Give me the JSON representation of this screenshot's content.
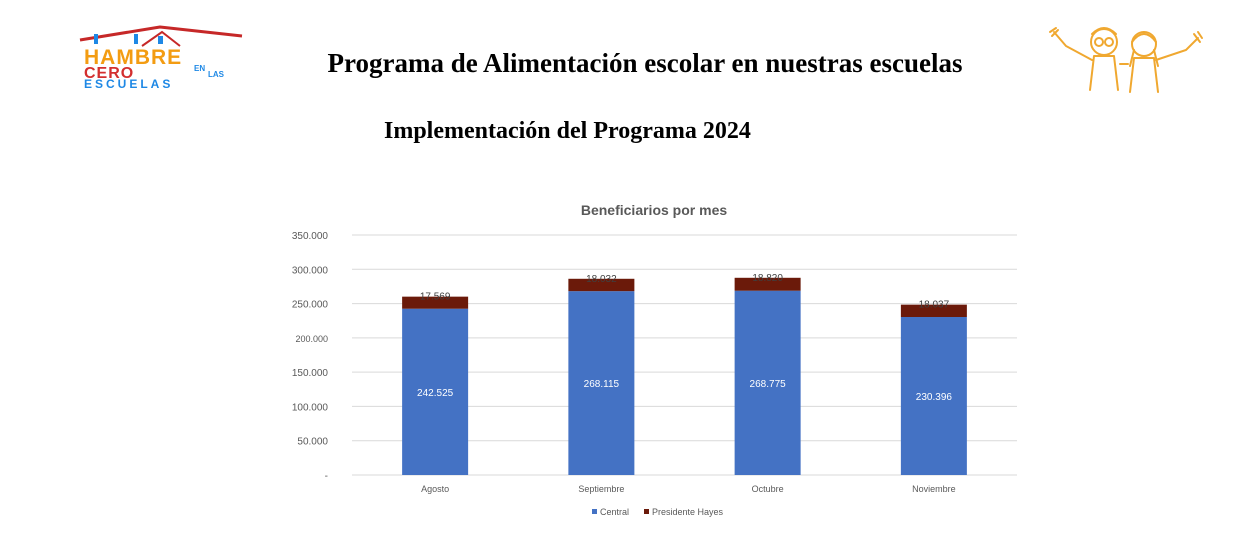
{
  "header": {
    "logo_text": [
      "HAMBRE",
      "CERO",
      "EN",
      "LAS",
      "ESCUELAS"
    ],
    "title": "Programa de Alimentación escolar en nuestras escuelas",
    "subtitle": "Implementación del Programa 2024"
  },
  "chart_data": {
    "type": "bar",
    "stacked": true,
    "title": "Beneficiarios por mes",
    "categories": [
      "Agosto",
      "Septiembre",
      "Octubre",
      "Noviembre"
    ],
    "series": [
      {
        "name": "Central",
        "color": "#4472C4",
        "values": [
          242525,
          268115,
          268775,
          230396
        ],
        "labels": [
          "242.525",
          "268.115",
          "268.775",
          "230.396"
        ]
      },
      {
        "name": "Presidente Hayes",
        "color": "#6B1A0A",
        "values": [
          17569,
          18032,
          18820,
          18037
        ],
        "labels": [
          "17.569",
          "18.032",
          "18.820",
          "18.037"
        ]
      }
    ],
    "ylim": [
      0,
      350000
    ],
    "yticks": [
      0,
      50000,
      100000,
      150000,
      200000,
      250000,
      300000,
      350000
    ],
    "ytick_labels": [
      "-",
      "50.000",
      "100.000",
      "150.000",
      "200.000",
      "250.000",
      "300.000",
      "350.000"
    ],
    "grid": true,
    "legend_position": "bottom"
  }
}
